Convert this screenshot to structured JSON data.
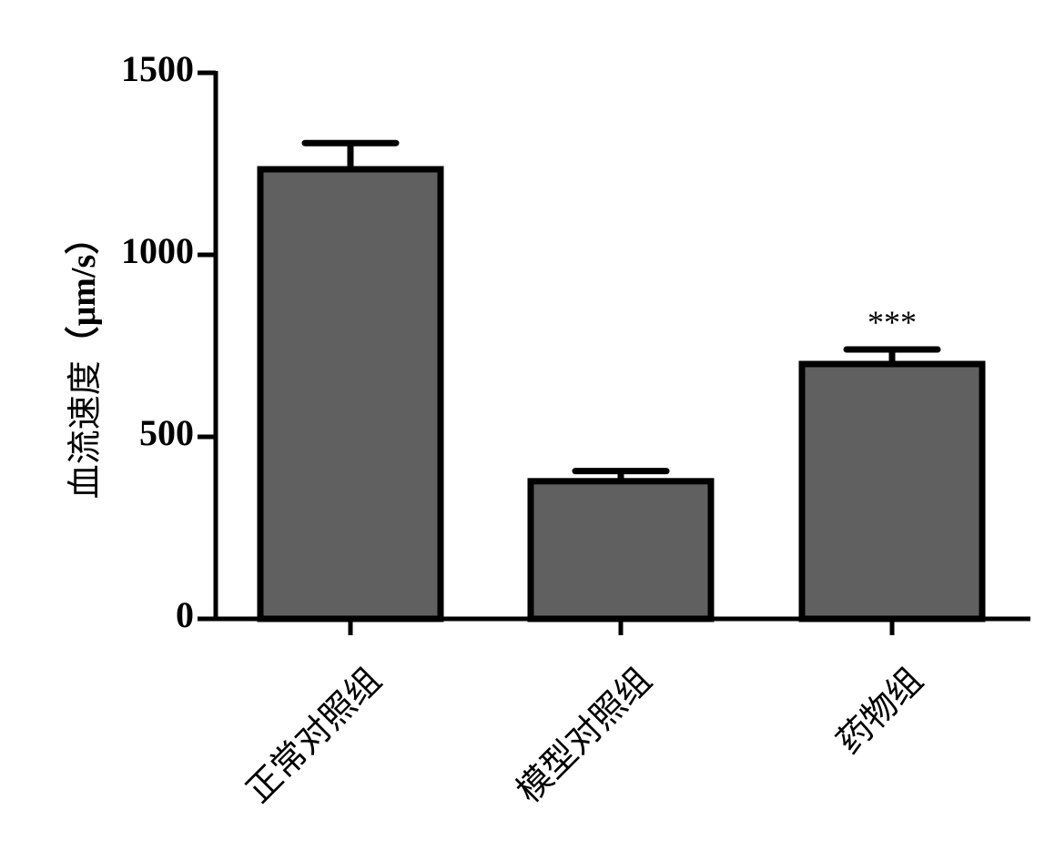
{
  "chart_data": {
    "type": "bar",
    "categories": [
      "正常对照组",
      "模型对照组",
      "药物组"
    ],
    "values": [
      1235,
      378,
      700
    ],
    "errors": [
      72,
      28,
      40
    ],
    "annotations": [
      "",
      "",
      "***"
    ],
    "ylabel_text": "血流速度",
    "ylabel_unit": "（μm/s）",
    "xlabel": "",
    "ylim": [
      0,
      1500
    ],
    "yticks": [
      0,
      500,
      1000,
      1500
    ],
    "grid": false,
    "legend": "none",
    "colors": {
      "bar_fill": "#606060",
      "bar_stroke": "#000000",
      "axis": "#000000"
    }
  }
}
